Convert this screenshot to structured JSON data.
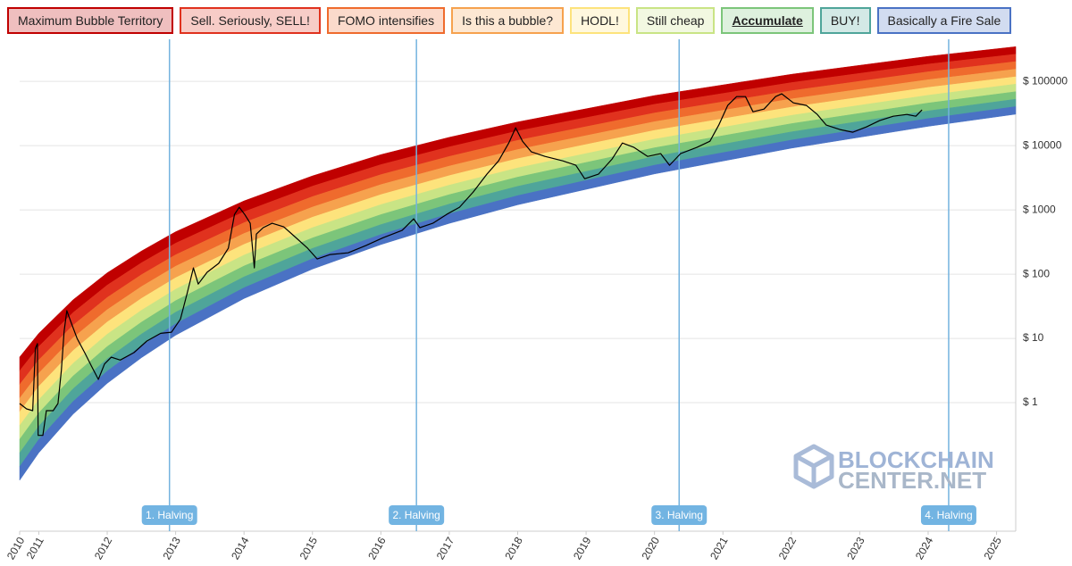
{
  "chart_data": {
    "type": "line",
    "log_y": true,
    "grid": true,
    "xlim": [
      2010.72,
      2025.28
    ],
    "ylim": [
      0.01,
      350000
    ],
    "xticks": [
      {
        "value": 2010.72,
        "label": "2010"
      },
      2011,
      2012,
      2013,
      2014,
      2015,
      2016,
      2017,
      2018,
      2019,
      2020,
      2021,
      2022,
      2023,
      2024,
      2025
    ],
    "yticks": [
      {
        "value": 1,
        "label": "$ 1"
      },
      {
        "value": 10,
        "label": "$ 10"
      },
      {
        "value": 100,
        "label": "$ 100"
      },
      {
        "value": 1000,
        "label": "$ 1000"
      },
      {
        "value": 10000,
        "label": "$ 10000"
      },
      {
        "value": 100000,
        "label": "$ 100000"
      }
    ],
    "band_x": [
      2010.72,
      2011,
      2011.5,
      2012,
      2012.5,
      2013,
      2014,
      2015,
      2016,
      2017,
      2018,
      2020,
      2022,
      2024,
      2025.28
    ],
    "bands": [
      {
        "name": "Maximum Bubble Territory",
        "color": "#c00000",
        "values": [
          5.13,
          12.0,
          39.8,
          105,
          229,
          457,
          1380,
          3390,
          7240,
          13500,
          23400,
          60300,
          129000,
          245000,
          347000
        ]
      },
      {
        "name": "Sell. Seriously, SELL!",
        "color": "#e0321e",
        "values": [
          3.14,
          7.46,
          25.2,
          67.5,
          150,
          303,
          935,
          2340,
          5060,
          9570,
          16900,
          44100,
          95900,
          186000,
          265000
        ]
      },
      {
        "name": "FOMO intensifies",
        "color": "#ef6b2d",
        "values": [
          1.92,
          4.64,
          16.0,
          43.4,
          98.0,
          200,
          634,
          1610,
          3540,
          6790,
          12100,
          32300,
          71500,
          141000,
          203000
        ]
      },
      {
        "name": "Is this a bubble?",
        "color": "#f6a24e",
        "values": [
          1.17,
          2.88,
          10.2,
          28.0,
          64.1,
          133,
          430,
          1110,
          2470,
          4820,
          8710,
          23600,
          53300,
          106000,
          155000
        ]
      },
      {
        "name": "HODL!",
        "color": "#fde37c",
        "values": [
          0.72,
          1.79,
          6.44,
          18.0,
          41.9,
          88.0,
          291,
          769,
          1730,
          3420,
          6270,
          17300,
          39700,
          80500,
          118000
        ]
      },
      {
        "name": "Still cheap",
        "color": "#c9e485",
        "values": [
          0.44,
          1.11,
          4.08,
          11.6,
          27.4,
          58.3,
          198,
          530,
          1210,
          2430,
          4500,
          12600,
          29600,
          60800,
          90600
        ]
      },
      {
        "name": "Accumulate",
        "color": "#7cc57a",
        "highlight": true,
        "values": [
          0.269,
          0.69,
          2.59,
          7.46,
          17.9,
          38.6,
          134,
          366,
          845,
          1730,
          3240,
          9270,
          22000,
          46000,
          69200
        ]
      },
      {
        "name": "BUY!",
        "color": "#4fa59a",
        "values": [
          0.165,
          0.43,
          1.64,
          4.81,
          11.7,
          25.6,
          90.8,
          252,
          590,
          1230,
          2330,
          6780,
          16400,
          34800,
          52800
        ]
      },
      {
        "name": "Basically a Fire Sale",
        "color": "#4a72c4",
        "values": [
          0.101,
          0.267,
          1.04,
          3.1,
          7.66,
          16.9,
          61.5,
          174,
          413,
          869,
          1670,
          4970,
          12200,
          26400,
          40500
        ],
        "lower": [
          0.062,
          0.166,
          0.66,
          2.0,
          5.0,
          11.2,
          41.7,
          120,
          288,
          617,
          1200,
          3630,
          9120,
          20000,
          30900
        ]
      }
    ],
    "price": {
      "color": "#000000",
      "x": [
        2010.72,
        2010.82,
        2010.91,
        2010.95,
        2010.98,
        2010.99,
        2011.06,
        2011.11,
        2011.21,
        2011.28,
        2011.33,
        2011.37,
        2011.41,
        2011.47,
        2011.56,
        2011.67,
        2011.77,
        2011.87,
        2011.96,
        2012.06,
        2012.19,
        2012.39,
        2012.58,
        2012.78,
        2012.94,
        2013.07,
        2013.17,
        2013.26,
        2013.33,
        2013.46,
        2013.63,
        2013.77,
        2013.86,
        2013.93,
        2014.01,
        2014.09,
        2014.15,
        2014.18,
        2014.28,
        2014.41,
        2014.58,
        2014.74,
        2014.93,
        2015.07,
        2015.26,
        2015.52,
        2015.78,
        2016.04,
        2016.31,
        2016.48,
        2016.57,
        2016.76,
        2016.96,
        2017.15,
        2017.35,
        2017.55,
        2017.72,
        2017.87,
        2017.97,
        2018.07,
        2018.2,
        2018.4,
        2018.66,
        2018.85,
        2018.98,
        2019.18,
        2019.38,
        2019.53,
        2019.7,
        2019.9,
        2020.09,
        2020.22,
        2020.38,
        2020.62,
        2020.81,
        2020.94,
        2021.07,
        2021.2,
        2021.33,
        2021.44,
        2021.6,
        2021.77,
        2021.86,
        2022.03,
        2022.22,
        2022.38,
        2022.51,
        2022.71,
        2022.9,
        2023.1,
        2023.29,
        2023.49,
        2023.69,
        2023.82,
        2023.91
      ],
      "values": [
        0.97,
        0.8,
        0.75,
        7.0,
        8.3,
        0.31,
        0.31,
        0.75,
        0.75,
        0.97,
        3.2,
        13,
        27,
        18,
        10,
        6.0,
        3.7,
        2.3,
        4.0,
        5.1,
        4.6,
        6.0,
        9.1,
        12,
        12.5,
        20,
        51,
        125,
        70,
        107,
        147,
        253,
        850,
        1100,
        850,
        620,
        125,
        420,
        530,
        620,
        545,
        385,
        253,
        172,
        202,
        215,
        278,
        371,
        480,
        726,
        530,
        620,
        850,
        1100,
        1900,
        3600,
        5800,
        11000,
        19000,
        11700,
        8000,
        6800,
        5800,
        4950,
        3060,
        3600,
        6200,
        11000,
        9400,
        6800,
        7500,
        4950,
        7500,
        9400,
        11700,
        20900,
        42200,
        58000,
        58000,
        33700,
        37100,
        58000,
        64000,
        46400,
        42200,
        30600,
        20900,
        17800,
        16200,
        19600,
        24500,
        28700,
        30600,
        28700,
        36000
      ]
    },
    "halvings": [
      {
        "x": 2012.91,
        "label": "1. Halving"
      },
      {
        "x": 2016.52,
        "label": "2. Halving"
      },
      {
        "x": 2020.36,
        "label": "3. Halving"
      },
      {
        "x": 2024.3,
        "label": "4. Halving"
      }
    ],
    "watermark": [
      "BLOCKCHAIN",
      "CENTER.NET"
    ]
  }
}
